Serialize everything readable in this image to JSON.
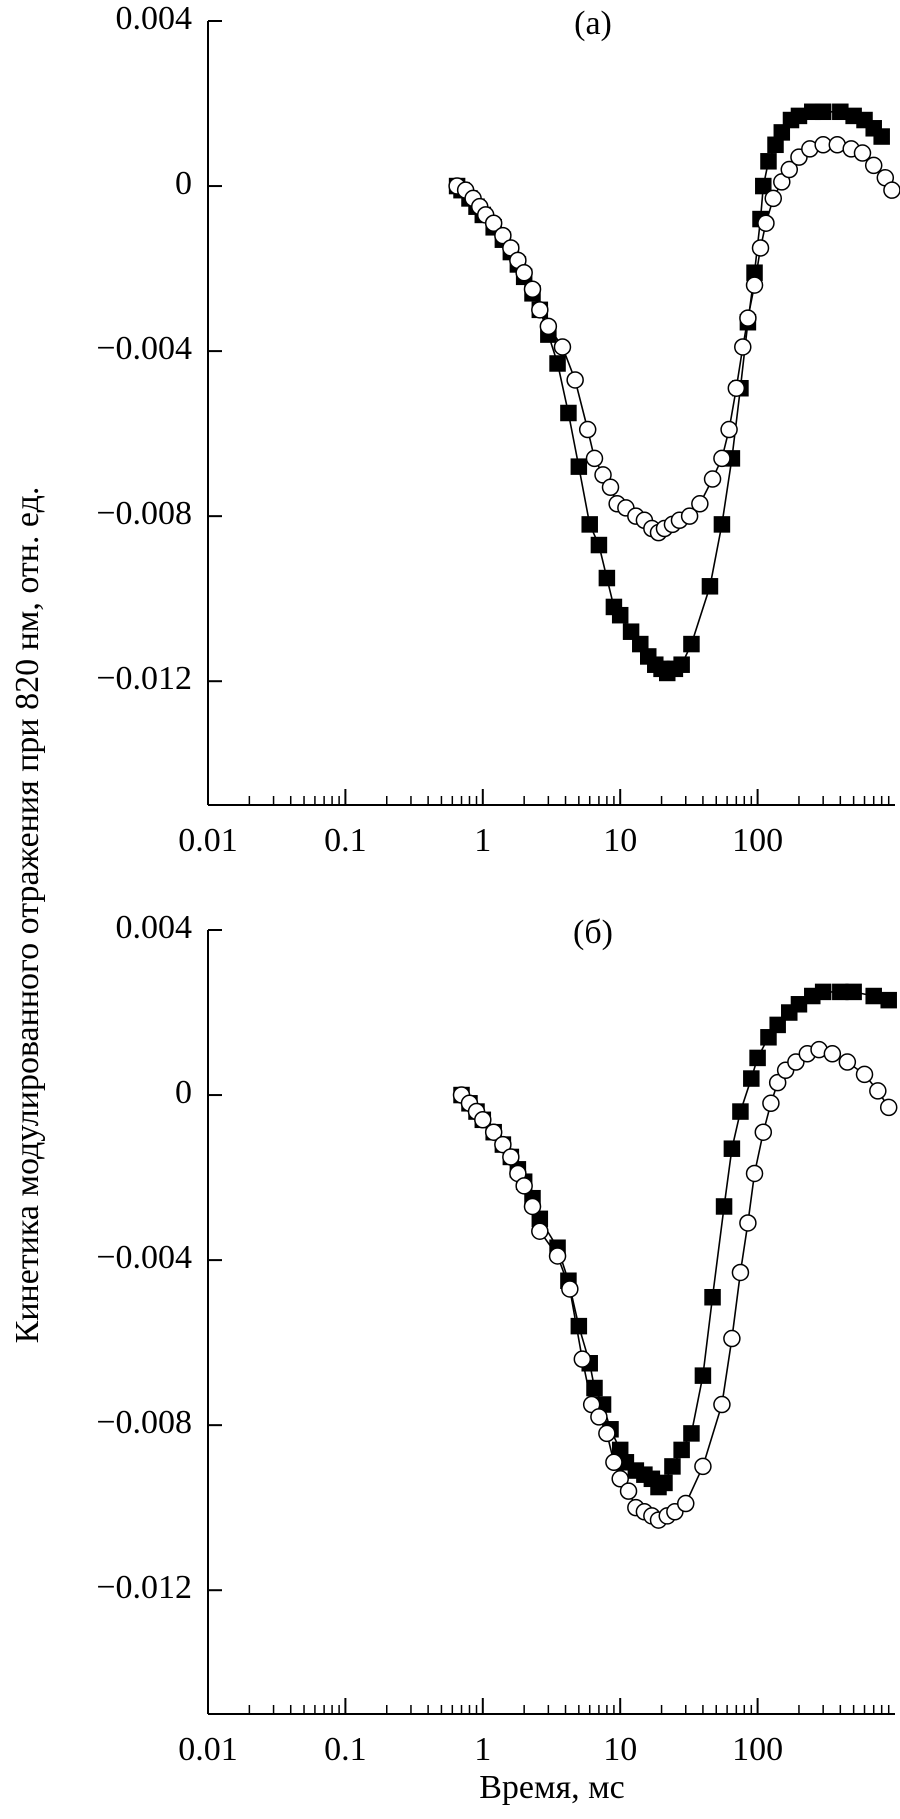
{
  "chart_data": [
    {
      "type": "line",
      "title": "(a)",
      "ylabel": "Кинетика модулированного отражения при 820 нм, отн. ед.",
      "xlog": true,
      "xlim": [
        0.01,
        1000
      ],
      "ylim": [
        -0.015,
        0.004
      ],
      "xticks": [
        0.01,
        0.1,
        1,
        10,
        100
      ],
      "yticks": [
        0.004,
        0,
        {
          "value": -0.004,
          "label": "−0.004"
        },
        {
          "value": -0.008,
          "label": "−0.008"
        },
        {
          "value": -0.012,
          "label": "−0.012"
        }
      ],
      "series": [
        {
          "marker": "square",
          "color": "#000000",
          "x": [
            0.65,
            0.7,
            0.8,
            0.9,
            1.0,
            1.2,
            1.4,
            1.6,
            1.8,
            2.0,
            2.3,
            2.6,
            3.0,
            3.5,
            4.2,
            5,
            6,
            7,
            8,
            9,
            10,
            12,
            14,
            16,
            18,
            20,
            22,
            25,
            28,
            33,
            45,
            55,
            65,
            75,
            85,
            95,
            105,
            110,
            120,
            135,
            150,
            175,
            200,
            250,
            300,
            400,
            500,
            600,
            700,
            800
          ],
          "values": [
            0,
            -0.0001,
            -0.0003,
            -0.0005,
            -0.0007,
            -0.001,
            -0.0013,
            -0.0016,
            -0.0019,
            -0.0022,
            -0.0026,
            -0.003,
            -0.0036,
            -0.0043,
            -0.0055,
            -0.0068,
            -0.0082,
            -0.0087,
            -0.0095,
            -0.0102,
            -0.0104,
            -0.0108,
            -0.0111,
            -0.0114,
            -0.0116,
            -0.0117,
            -0.0118,
            -0.0117,
            -0.0116,
            -0.0111,
            -0.0097,
            -0.0082,
            -0.0066,
            -0.0049,
            -0.0033,
            -0.0021,
            -0.0008,
            0,
            0.0006,
            0.001,
            0.0013,
            0.0016,
            0.0017,
            0.0018,
            0.0018,
            0.0018,
            0.0017,
            0.0016,
            0.0014,
            0.0012
          ]
        },
        {
          "marker": "circle",
          "color": "#ffffff",
          "x": [
            0.65,
            0.75,
            0.85,
            0.95,
            1.05,
            1.2,
            1.4,
            1.6,
            1.8,
            2.0,
            2.3,
            2.6,
            3,
            3.8,
            4.7,
            5.8,
            6.5,
            7.5,
            8.5,
            9.5,
            11,
            13,
            15,
            17,
            19,
            21,
            24,
            27,
            32,
            38,
            47,
            55,
            62,
            70,
            78,
            85,
            95,
            105,
            115,
            130,
            150,
            170,
            200,
            240,
            300,
            380,
            480,
            580,
            700,
            850,
            950
          ],
          "values": [
            0,
            -0.0001,
            -0.0003,
            -0.0005,
            -0.0007,
            -0.0009,
            -0.0012,
            -0.0015,
            -0.0018,
            -0.0021,
            -0.0025,
            -0.003,
            -0.0034,
            -0.0039,
            -0.0047,
            -0.0059,
            -0.0066,
            -0.007,
            -0.0073,
            -0.0077,
            -0.0078,
            -0.008,
            -0.0081,
            -0.0083,
            -0.0084,
            -0.0083,
            -0.0082,
            -0.0081,
            -0.008,
            -0.0077,
            -0.0071,
            -0.0066,
            -0.0059,
            -0.0049,
            -0.0039,
            -0.0032,
            -0.0024,
            -0.0015,
            -0.0009,
            -0.0003,
            0.0001,
            0.0004,
            0.0007,
            0.0009,
            0.001,
            0.001,
            0.0009,
            0.0008,
            0.0005,
            0.0002,
            -0.0001
          ]
        }
      ]
    },
    {
      "type": "line",
      "title": "(б)",
      "xlabel": "Время, мс",
      "xlog": true,
      "xlim": [
        0.01,
        1000
      ],
      "ylim": [
        -0.015,
        0.004
      ],
      "xticks": [
        0.01,
        0.1,
        1,
        10,
        100
      ],
      "yticks": [
        0.004,
        0,
        {
          "value": -0.004,
          "label": "−0.004"
        },
        {
          "value": -0.008,
          "label": "−0.008"
        },
        {
          "value": -0.012,
          "label": "−0.012"
        }
      ],
      "series": [
        {
          "marker": "square",
          "color": "#000000",
          "x": [
            0.7,
            0.8,
            0.9,
            1.0,
            1.2,
            1.4,
            1.6,
            1.8,
            2.0,
            2.3,
            2.6,
            3.5,
            4.2,
            5,
            6,
            6.5,
            7.5,
            8.5,
            10,
            11,
            13,
            15,
            17,
            19,
            21,
            24,
            28,
            33,
            40,
            47,
            57,
            65,
            75,
            90,
            100,
            120,
            140,
            170,
            200,
            250,
            300,
            400,
            500,
            700,
            900
          ],
          "values": [
            0,
            -0.0002,
            -0.0004,
            -0.0006,
            -0.0009,
            -0.0012,
            -0.0015,
            -0.0018,
            -0.0021,
            -0.0025,
            -0.003,
            -0.0037,
            -0.0045,
            -0.0056,
            -0.0065,
            -0.0071,
            -0.0075,
            -0.0081,
            -0.0086,
            -0.0089,
            -0.0091,
            -0.0092,
            -0.0093,
            -0.0095,
            -0.0094,
            -0.009,
            -0.0086,
            -0.0082,
            -0.0068,
            -0.0049,
            -0.0027,
            -0.0013,
            -0.0004,
            0.0004,
            0.0009,
            0.0014,
            0.0017,
            0.002,
            0.0022,
            0.0024,
            0.0025,
            0.0025,
            0.0025,
            0.0024,
            0.0023
          ]
        },
        {
          "marker": "circle",
          "color": "#ffffff",
          "x": [
            0.7,
            0.8,
            0.9,
            1.0,
            1.2,
            1.4,
            1.6,
            1.8,
            2.0,
            2.3,
            2.6,
            3.5,
            4.3,
            5.3,
            6.2,
            7,
            8,
            9,
            10,
            11.5,
            13,
            15,
            17,
            19,
            22,
            25,
            30,
            40,
            55,
            65,
            75,
            85,
            95,
            110,
            125,
            140,
            160,
            190,
            230,
            280,
            350,
            450,
            600,
            750,
            900
          ],
          "values": [
            0,
            -0.0002,
            -0.0004,
            -0.0006,
            -0.0009,
            -0.0012,
            -0.0015,
            -0.0019,
            -0.0022,
            -0.0027,
            -0.0033,
            -0.0039,
            -0.0047,
            -0.0064,
            -0.0075,
            -0.0078,
            -0.0082,
            -0.0089,
            -0.0093,
            -0.0096,
            -0.01,
            -0.0101,
            -0.0102,
            -0.0103,
            -0.0102,
            -0.0101,
            -0.0099,
            -0.009,
            -0.0075,
            -0.0059,
            -0.0043,
            -0.0031,
            -0.0019,
            -0.0009,
            -0.0002,
            0.0003,
            0.0006,
            0.0008,
            0.001,
            0.0011,
            0.001,
            0.0008,
            0.0005,
            0.0001,
            -0.0003
          ]
        }
      ]
    }
  ]
}
